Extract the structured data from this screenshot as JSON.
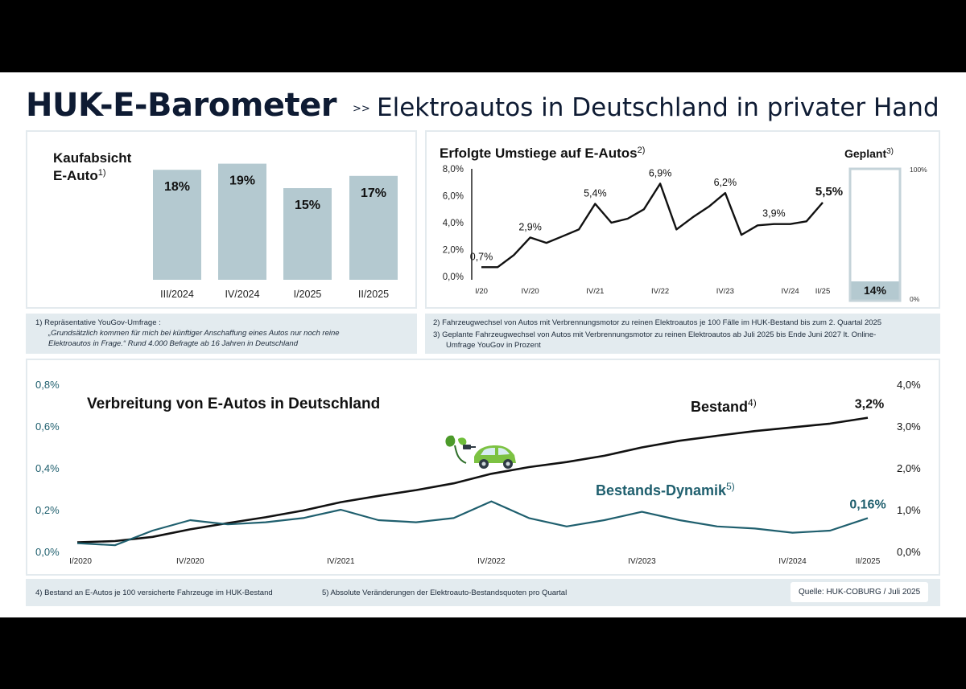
{
  "header": {
    "title": "HUK-E-Barometer",
    "separator": ">>",
    "subtitle": "Elektroautos in Deutschland in privater Hand"
  },
  "colors": {
    "navy": "#0e1b33",
    "bar": "#b4c9d0",
    "teal": "#1f5f6e",
    "panel_border": "#e3eaee",
    "note_bg": "#e3ebef"
  },
  "kaufabsicht": {
    "title_line1": "Kaufabsicht",
    "title_line2": "E-Auto",
    "title_sup": "1)"
  },
  "umstiege": {
    "title": "Erfolgte Umstiege auf E-Autos",
    "title_sup": "2)"
  },
  "geplant": {
    "title": "Geplant",
    "title_sup": "3)",
    "top_label": "100%",
    "bottom_label": "0%"
  },
  "verbreitung": {
    "title": "Verbreitung von E-Autos in Deutschland",
    "bestand_label": "Bestand",
    "bestand_sup": "4)",
    "dynamik_label": "Bestands-Dynamik",
    "dynamik_sup": "5)",
    "icon": "electric-car-icon"
  },
  "notes": {
    "n1_head": "1)  Repräsentative YouGov-Umfrage :",
    "n1_line1": "„Grundsätzlich kommen für mich bei künftiger Anschaffung eines Autos nur noch reine",
    "n1_line2": "Elektroautos in Frage.“ Rund 4.000 Befragte ab 16 Jahren in Deutschland",
    "n2": "2)  Fahrzeugwechsel von Autos mit Verbrennungsmotor zu reinen Elektroautos je 100 Fälle im HUK-Bestand bis zum 2. Quartal 2025",
    "n3_line1": "3)  Geplante Fahrzeugwechsel von Autos mit Verbrennungsmotor zu reinen Elektroautos ab Juli 2025 bis Ende Juni 2027 lt. Online-",
    "n3_line2": "Umfrage YouGov in Prozent",
    "n4": "4) Bestand an E-Autos je 100 versicherte Fahrzeuge im HUK-Bestand",
    "n5": "5) Absolute Veränderungen der Elektroauto-Bestandsquoten pro Quartal",
    "source": "Quelle: HUK-COBURG / Juli  2025"
  },
  "chart_data": [
    {
      "type": "bar",
      "categories": [
        "III/2024",
        "IV/2024",
        "I/2025",
        "II/2025"
      ],
      "values": [
        18,
        19,
        15,
        17
      ],
      "value_labels": [
        "18%",
        "19%",
        "15%",
        "17%"
      ]
    },
    {
      "type": "line",
      "x": [
        "I/20",
        "II/20",
        "III/20",
        "IV/20",
        "I/21",
        "II/21",
        "III/21",
        "IV/21",
        "I/22",
        "II/22",
        "III/22",
        "IV/22",
        "I/23",
        "II/23",
        "III/23",
        "IV/23",
        "I/24",
        "II/24",
        "III/24",
        "IV/24",
        "I/25",
        "II/25"
      ],
      "x_tick_labels": [
        "I/20",
        "IV/20",
        "IV/21",
        "IV/22",
        "IV/23",
        "IV/24",
        "II/25"
      ],
      "values": [
        0.7,
        0.7,
        1.6,
        2.9,
        2.5,
        3.0,
        3.5,
        5.4,
        4.0,
        4.3,
        5.0,
        6.9,
        3.5,
        4.4,
        5.2,
        6.2,
        3.1,
        3.8,
        3.9,
        3.9,
        4.1,
        5.5
      ],
      "data_labels": [
        {
          "x": "I/20",
          "label": "0,7%"
        },
        {
          "x": "IV/20",
          "label": "2,9%"
        },
        {
          "x": "IV/21",
          "label": "5,4%"
        },
        {
          "x": "IV/22",
          "label": "6,9%"
        },
        {
          "x": "IV/23",
          "label": "6,2%"
        },
        {
          "x": "III/24",
          "label": "3,9%"
        },
        {
          "x": "II/25",
          "label": "5,5%"
        }
      ],
      "y_tick_labels": [
        "0,0%",
        "2,0%",
        "4,0%",
        "6,0%",
        "8,0%"
      ],
      "ylim": [
        0,
        8
      ]
    },
    {
      "type": "bar",
      "categories": [
        "Geplant"
      ],
      "values": [
        14
      ],
      "value_labels": [
        "14%"
      ],
      "ylim": [
        0,
        100
      ]
    },
    {
      "type": "line",
      "x": [
        "I/2020",
        "II/2020",
        "III/2020",
        "IV/2020",
        "I/2021",
        "II/2021",
        "III/2021",
        "IV/2021",
        "I/2022",
        "II/2022",
        "III/2022",
        "IV/2022",
        "I/2023",
        "II/2023",
        "III/2023",
        "IV/2023",
        "I/2024",
        "II/2024",
        "III/2024",
        "IV/2024",
        "I/2025",
        "II/2025"
      ],
      "x_tick_labels": [
        "I/2020",
        "IV/2020",
        "IV/2021",
        "IV/2022",
        "IV/2023",
        "IV/2024",
        "II/2025"
      ],
      "series": [
        {
          "name": "Bestand",
          "axis": "right",
          "values": [
            0.22,
            0.25,
            0.35,
            0.53,
            0.68,
            0.82,
            0.98,
            1.18,
            1.33,
            1.47,
            1.63,
            1.86,
            2.02,
            2.14,
            2.29,
            2.49,
            2.65,
            2.77,
            2.88,
            2.97,
            3.06,
            3.2
          ],
          "end_label": "3,2%"
        },
        {
          "name": "Bestands-Dynamik",
          "axis": "left",
          "values": [
            0.04,
            0.03,
            0.1,
            0.15,
            0.13,
            0.14,
            0.16,
            0.2,
            0.15,
            0.14,
            0.16,
            0.24,
            0.16,
            0.12,
            0.15,
            0.19,
            0.15,
            0.12,
            0.11,
            0.09,
            0.1,
            0.16
          ],
          "end_label": "0,16%"
        }
      ],
      "y_left_tick_labels": [
        "0,0%",
        "0,2%",
        "0,4%",
        "0,6%",
        "0,8%"
      ],
      "y_right_tick_labels": [
        "0,0%",
        "1,0%",
        "2,0%",
        "3,0%",
        "4,0%"
      ],
      "ylim_left": [
        0,
        0.8
      ],
      "ylim_right": [
        0,
        4
      ]
    }
  ]
}
